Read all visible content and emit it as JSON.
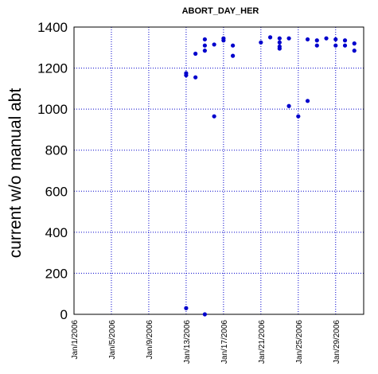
{
  "chart_data": {
    "type": "scatter",
    "title": "ABORT_DAY_HER",
    "xlabel": "",
    "ylabel": "current w/o manual abt",
    "xlim": [
      "2006-01-01",
      "2006-02-01"
    ],
    "ylim": [
      0,
      1400
    ],
    "x_ticks": [
      "Jan/1/2006",
      "Jan/5/2006",
      "Jan/9/2006",
      "Jan/13/2006",
      "Jan/17/2006",
      "Jan/21/2006",
      "Jan/25/2006",
      "Jan/29/2006"
    ],
    "y_ticks": [
      0,
      200,
      400,
      600,
      800,
      1000,
      1200,
      1400
    ],
    "grid": true,
    "marker_color": "#0000cc",
    "grid_color": "#0000cc",
    "points": [
      {
        "x": "2006-01-13 00:00",
        "y": 30
      },
      {
        "x": "2006-01-13 00:00",
        "y": 1165
      },
      {
        "x": "2006-01-13 00:00",
        "y": 1175
      },
      {
        "x": "2006-01-14 00:00",
        "y": 1155
      },
      {
        "x": "2006-01-14 00:00",
        "y": 1270
      },
      {
        "x": "2006-01-15 00:00",
        "y": 0
      },
      {
        "x": "2006-01-15 00:00",
        "y": 1285
      },
      {
        "x": "2006-01-15 00:00",
        "y": 1310
      },
      {
        "x": "2006-01-15 00:00",
        "y": 1340
      },
      {
        "x": "2006-01-16 00:00",
        "y": 965
      },
      {
        "x": "2006-01-16 00:00",
        "y": 1315
      },
      {
        "x": "2006-01-17 00:00",
        "y": 1335
      },
      {
        "x": "2006-01-17 00:00",
        "y": 1345
      },
      {
        "x": "2006-01-18 00:00",
        "y": 1260
      },
      {
        "x": "2006-01-18 00:00",
        "y": 1310
      },
      {
        "x": "2006-01-21 00:00",
        "y": 1325
      },
      {
        "x": "2006-01-22 00:00",
        "y": 1350
      },
      {
        "x": "2006-01-23 00:00",
        "y": 1295
      },
      {
        "x": "2006-01-23 00:00",
        "y": 1305
      },
      {
        "x": "2006-01-23 00:00",
        "y": 1325
      },
      {
        "x": "2006-01-23 00:00",
        "y": 1345
      },
      {
        "x": "2006-01-24 00:00",
        "y": 1015
      },
      {
        "x": "2006-01-24 00:00",
        "y": 1345
      },
      {
        "x": "2006-01-25 00:00",
        "y": 965
      },
      {
        "x": "2006-01-26 00:00",
        "y": 1040
      },
      {
        "x": "2006-01-26 00:00",
        "y": 1340
      },
      {
        "x": "2006-01-27 00:00",
        "y": 1310
      },
      {
        "x": "2006-01-27 00:00",
        "y": 1335
      },
      {
        "x": "2006-01-28 00:00",
        "y": 1345
      },
      {
        "x": "2006-01-29 00:00",
        "y": 1310
      },
      {
        "x": "2006-01-29 00:00",
        "y": 1340
      },
      {
        "x": "2006-01-30 00:00",
        "y": 1310
      },
      {
        "x": "2006-01-30 00:00",
        "y": 1335
      },
      {
        "x": "2006-01-31 00:00",
        "y": 1285
      },
      {
        "x": "2006-01-31 00:00",
        "y": 1320
      }
    ]
  }
}
